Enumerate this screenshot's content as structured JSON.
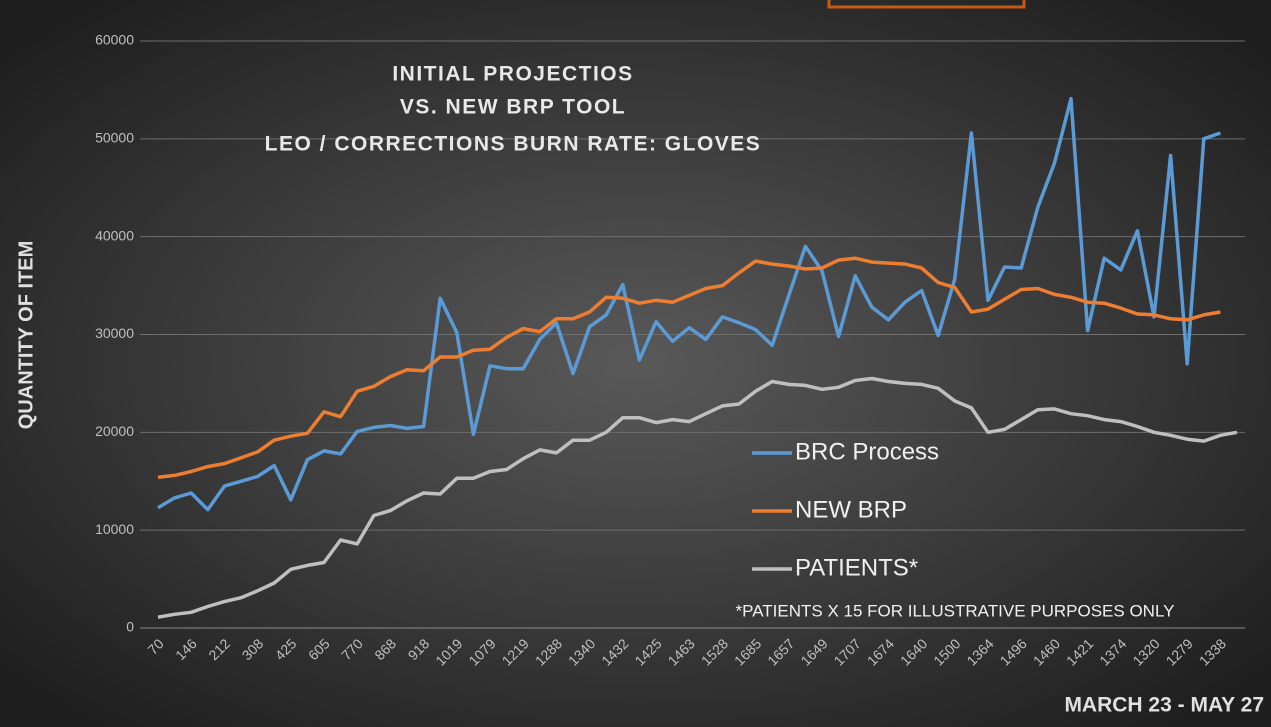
{
  "chart_data": {
    "type": "line",
    "title": [
      "INITIAL PROJECTIOS",
      "VS. NEW BRP TOOL",
      "LEO / CORRECTIONS BURN RATE: GLOVES"
    ],
    "ylabel": "QUANTITY OF ITEM",
    "xlabel": "MARCH 23 - MAY 27",
    "note": "*PATIENTS X 15 FOR ILLUSTRATIVE PURPOSES ONLY",
    "categories": [
      "70",
      null,
      "146",
      null,
      "212",
      null,
      "308",
      null,
      "425",
      null,
      "605",
      null,
      "770",
      null,
      "868",
      null,
      "918",
      null,
      "1019",
      null,
      "1079",
      null,
      "1219",
      null,
      "1288",
      null,
      "1340",
      null,
      "1432",
      null,
      "1425",
      null,
      "1463",
      null,
      "1528",
      null,
      "1685",
      null,
      "1657",
      null,
      "1649",
      null,
      "1707",
      null,
      "1674",
      null,
      "1640",
      null,
      "1500",
      null,
      "1364",
      null,
      "1496",
      null,
      "1460",
      null,
      "1421",
      null,
      "1374",
      null,
      "1320",
      null,
      "1279",
      null,
      "1338",
      null
    ],
    "series": [
      {
        "name": "BRC Process",
        "color": "#5b9bd5",
        "values": [
          12300,
          13300,
          13800,
          12100,
          14500,
          15000,
          15500,
          16600,
          13100,
          17200,
          18100,
          17800,
          20100,
          20500,
          20700,
          20400,
          20600,
          33700,
          30200,
          19800,
          26800,
          26500,
          26500,
          29500,
          31200,
          26000,
          30800,
          32000,
          35100,
          27400,
          31300,
          29300,
          30700,
          29500,
          31800,
          31200,
          30500,
          28900,
          34000,
          39000,
          36500,
          29800,
          36000,
          32800,
          31500,
          33300,
          34500,
          29900,
          35700,
          50600,
          33500,
          36900,
          36800,
          43000,
          47500,
          54100,
          30400,
          37800,
          36600,
          40600,
          31800,
          48300,
          27000,
          50000,
          50600,
          null
        ]
      },
      {
        "name": "NEW BRP",
        "color": "#ed7d31",
        "values": [
          15400,
          15600,
          16000,
          16500,
          16800,
          17400,
          18000,
          19200,
          19600,
          19900,
          22100,
          21600,
          24200,
          24700,
          25700,
          26400,
          26300,
          27700,
          27700,
          28400,
          28500,
          29700,
          30600,
          30300,
          31600,
          31600,
          32300,
          33800,
          33700,
          33200,
          33500,
          33300,
          34000,
          34700,
          35000,
          36300,
          37500,
          37200,
          37000,
          36700,
          36800,
          37600,
          37800,
          37400,
          37300,
          37200,
          36800,
          35300,
          34800,
          32300,
          32600,
          33600,
          34600,
          34700,
          34100,
          33800,
          33300,
          33200,
          32700,
          32100,
          32000,
          31600,
          31500,
          32000,
          32300,
          null
        ]
      },
      {
        "name": "PATIENTS*",
        "color": "#bfbfbf",
        "values": [
          1100,
          1400,
          1600,
          2200,
          2700,
          3100,
          3800,
          4600,
          6000,
          6400,
          6700,
          9000,
          8600,
          11500,
          12000,
          13000,
          13800,
          13700,
          15300,
          15300,
          16000,
          16200,
          17300,
          18200,
          17900,
          19200,
          19200,
          20000,
          21500,
          21500,
          21000,
          21300,
          21100,
          21900,
          22700,
          22900,
          24200,
          25200,
          24900,
          24800,
          24400,
          24600,
          25300,
          25500,
          25200,
          25000,
          24900,
          24500,
          23200,
          22500,
          20000,
          20300,
          21300,
          22300,
          22400,
          21900,
          21700,
          21300,
          21100,
          20600,
          20000,
          19700,
          19300,
          19100,
          19700,
          20000
        ]
      }
    ],
    "ylim": [
      0,
      60000
    ],
    "yticks": [
      0,
      10000,
      20000,
      30000,
      40000,
      50000,
      60000
    ],
    "grid": true
  }
}
